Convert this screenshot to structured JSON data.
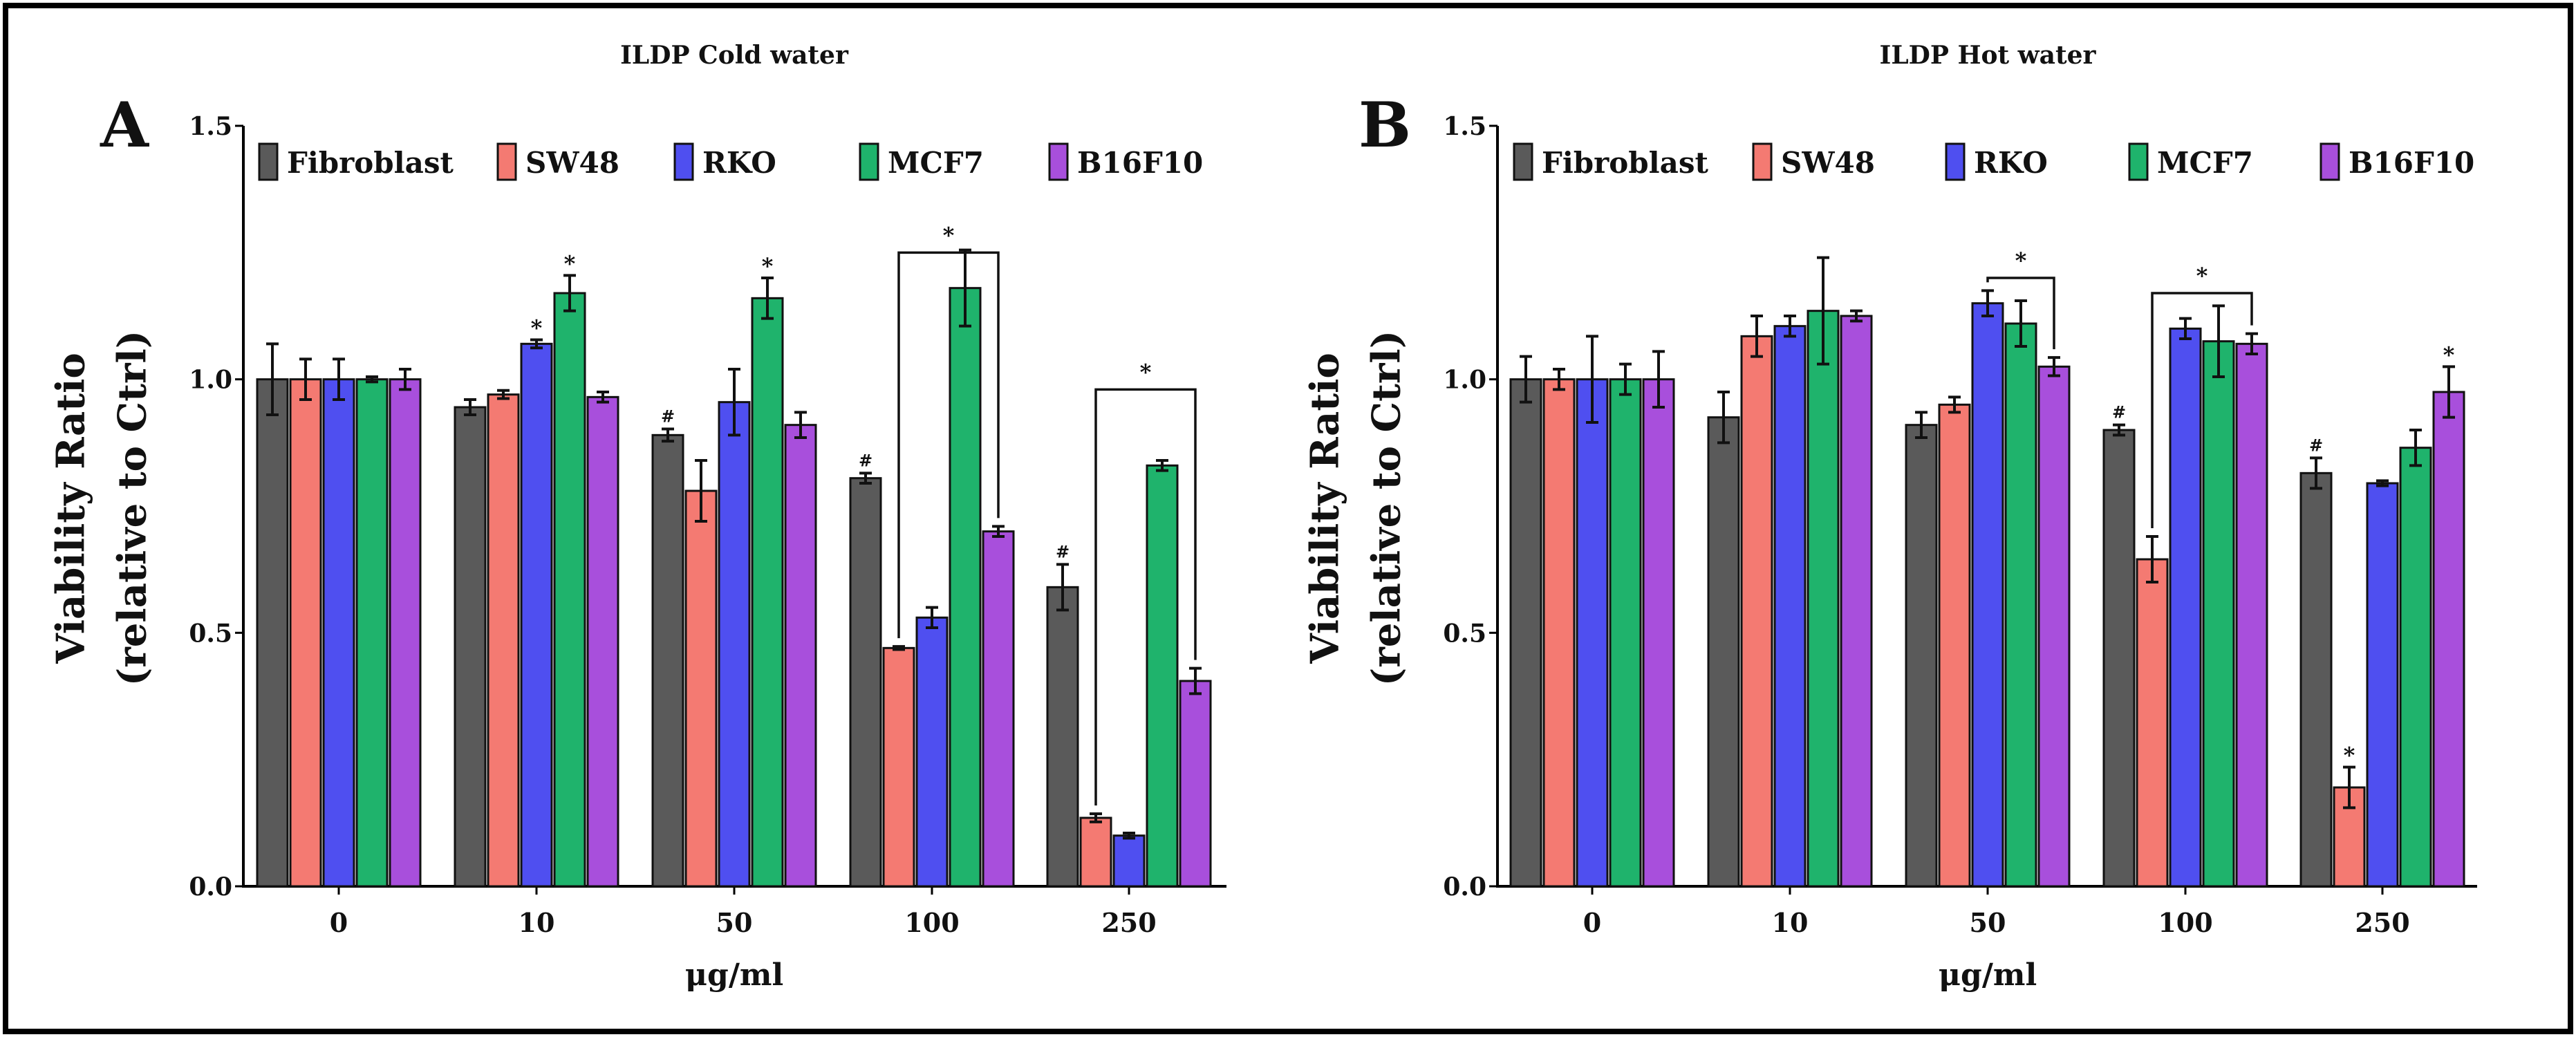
{
  "colors": {
    "Fibroblast": "#5a5a5a",
    "SW48": "#f47a72",
    "RKO": "#4f4ff0",
    "MCF7": "#1fb36c",
    "B16F10": "#a84fdc"
  },
  "chart_data": [
    {
      "type": "bar",
      "panel_letter": "A",
      "title": "ILDP Cold water",
      "xlabel": "μg/ml",
      "ylabel": [
        "Viability Ratio",
        "(relative to Ctrl)"
      ],
      "ylim": [
        0,
        1.5
      ],
      "yticks": [
        "0.0",
        "0.5",
        "1.0",
        "1.5"
      ],
      "legend_position": "top",
      "categories": [
        "0",
        "10",
        "50",
        "100",
        "250"
      ],
      "series": [
        {
          "name": "Fibroblast",
          "values": [
            1.0,
            0.945,
            0.89,
            0.805,
            0.59
          ],
          "errors": [
            0.07,
            0.015,
            0.012,
            0.01,
            0.045
          ],
          "marks": [
            "",
            "",
            "#",
            "#",
            "#"
          ]
        },
        {
          "name": "SW48",
          "values": [
            1.0,
            0.97,
            0.78,
            0.47,
            0.135
          ],
          "errors": [
            0.04,
            0.008,
            0.06,
            0.003,
            0.008
          ],
          "marks": [
            "",
            "",
            "",
            "",
            ""
          ]
        },
        {
          "name": "RKO",
          "values": [
            1.0,
            1.07,
            0.955,
            0.53,
            0.1
          ],
          "errors": [
            0.04,
            0.008,
            0.065,
            0.02,
            0.005
          ],
          "marks": [
            "",
            "*",
            "",
            "",
            ""
          ]
        },
        {
          "name": "MCF7",
          "values": [
            1.0,
            1.17,
            1.16,
            1.18,
            0.83
          ],
          "errors": [
            0.005,
            0.035,
            0.04,
            0.075,
            0.01
          ],
          "marks": [
            "",
            "*",
            "*",
            "",
            ""
          ]
        },
        {
          "name": "B16F10",
          "values": [
            1.0,
            0.965,
            0.91,
            0.7,
            0.405
          ],
          "errors": [
            0.02,
            0.01,
            0.025,
            0.01,
            0.025
          ],
          "marks": [
            "",
            "",
            "",
            "",
            ""
          ]
        }
      ],
      "brackets": [
        {
          "category": "100",
          "from": "SW48",
          "to": "B16F10",
          "y": 1.25,
          "label": "*"
        },
        {
          "category": "250",
          "from": "SW48",
          "to": "B16F10",
          "y": 0.98,
          "label": "*"
        }
      ]
    },
    {
      "type": "bar",
      "panel_letter": "B",
      "title": "ILDP Hot water",
      "xlabel": "μg/ml",
      "ylabel": [
        "Viability Ratio",
        "(relative to Ctrl)"
      ],
      "ylim": [
        0,
        1.5
      ],
      "yticks": [
        "0.0",
        "0.5",
        "1.0",
        "1.5"
      ],
      "legend_position": "top",
      "categories": [
        "0",
        "10",
        "50",
        "100",
        "250"
      ],
      "series": [
        {
          "name": "Fibroblast",
          "values": [
            1.0,
            0.925,
            0.91,
            0.9,
            0.815
          ],
          "errors": [
            0.045,
            0.05,
            0.025,
            0.01,
            0.03
          ],
          "marks": [
            "",
            "",
            "",
            "#",
            "#"
          ]
        },
        {
          "name": "SW48",
          "values": [
            1.0,
            1.085,
            0.95,
            0.645,
            0.195
          ],
          "errors": [
            0.02,
            0.04,
            0.015,
            0.045,
            0.04
          ],
          "marks": [
            "",
            "",
            "",
            "",
            "*"
          ]
        },
        {
          "name": "RKO",
          "values": [
            1.0,
            1.105,
            1.15,
            1.1,
            0.795
          ],
          "errors": [
            0.085,
            0.02,
            0.025,
            0.02,
            0.005
          ],
          "marks": [
            "",
            "",
            "",
            "",
            ""
          ]
        },
        {
          "name": "MCF7",
          "values": [
            1.0,
            1.135,
            1.11,
            1.075,
            0.865
          ],
          "errors": [
            0.03,
            0.105,
            0.045,
            0.07,
            0.035
          ],
          "marks": [
            "",
            "",
            "",
            "",
            ""
          ]
        },
        {
          "name": "B16F10",
          "values": [
            1.0,
            1.125,
            1.025,
            1.07,
            0.975
          ],
          "errors": [
            0.055,
            0.01,
            0.018,
            0.02,
            0.05
          ],
          "marks": [
            "",
            "",
            "",
            "",
            "*"
          ]
        }
      ],
      "brackets": [
        {
          "category": "50",
          "from": "RKO",
          "to": "B16F10",
          "y": 1.2,
          "label": "*"
        },
        {
          "category": "100",
          "from": "SW48",
          "to": "B16F10",
          "y": 1.17,
          "label": "*"
        }
      ]
    }
  ]
}
